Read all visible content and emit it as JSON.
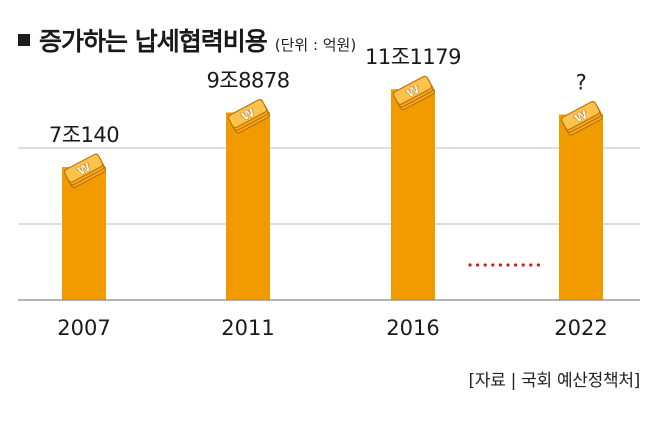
{
  "title": "증가하는 납세협력비용",
  "unit": "(단위 : 억원)",
  "source": "[자료 | 국회 예산정책처]",
  "colors": {
    "bar": "#f29b00",
    "bar_top": "#f6ad1c",
    "coin_edge": "#b86f00",
    "grid": "#bdbdbd",
    "dots": "#cc1b1b",
    "text": "#1a1a1a"
  },
  "icon": "won-coin-stack-icon",
  "chart_data": {
    "type": "bar",
    "title": "증가하는 납세협력비용",
    "unit": "억원",
    "categories": [
      "2007",
      "2011",
      "2016",
      "2022"
    ],
    "series": [
      {
        "values": [
          70140,
          98878,
          111179,
          null
        ],
        "labels": [
          "7조140",
          "9조8878",
          "11조1179",
          "?"
        ]
      }
    ],
    "grid": true,
    "annotation": "……"
  }
}
